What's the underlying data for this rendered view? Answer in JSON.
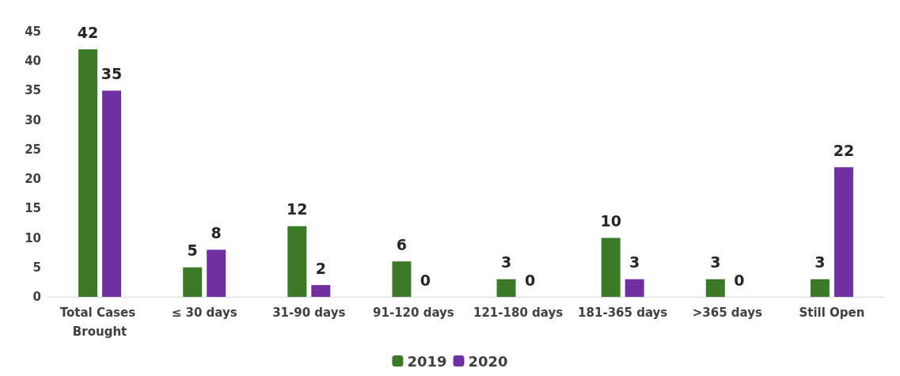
{
  "chart_data": {
    "type": "bar",
    "categories": [
      "Total Cases Brought",
      "≤ 30 days",
      "31-90 days",
      "91-120 days",
      "121-180 days",
      "181-365 days",
      ">365 days",
      "Still Open"
    ],
    "series": [
      {
        "name": "2019",
        "color": "#3d7a28",
        "values": [
          42,
          5,
          12,
          6,
          3,
          10,
          3,
          3
        ]
      },
      {
        "name": "2020",
        "color": "#7030a0",
        "values": [
          35,
          8,
          2,
          0,
          0,
          3,
          0,
          22
        ]
      }
    ],
    "ylim": [
      0,
      45
    ],
    "yticks": [
      0,
      5,
      10,
      15,
      20,
      25,
      30,
      35,
      40,
      45
    ],
    "grid": false,
    "legend": "bottom",
    "data_labels": true
  }
}
